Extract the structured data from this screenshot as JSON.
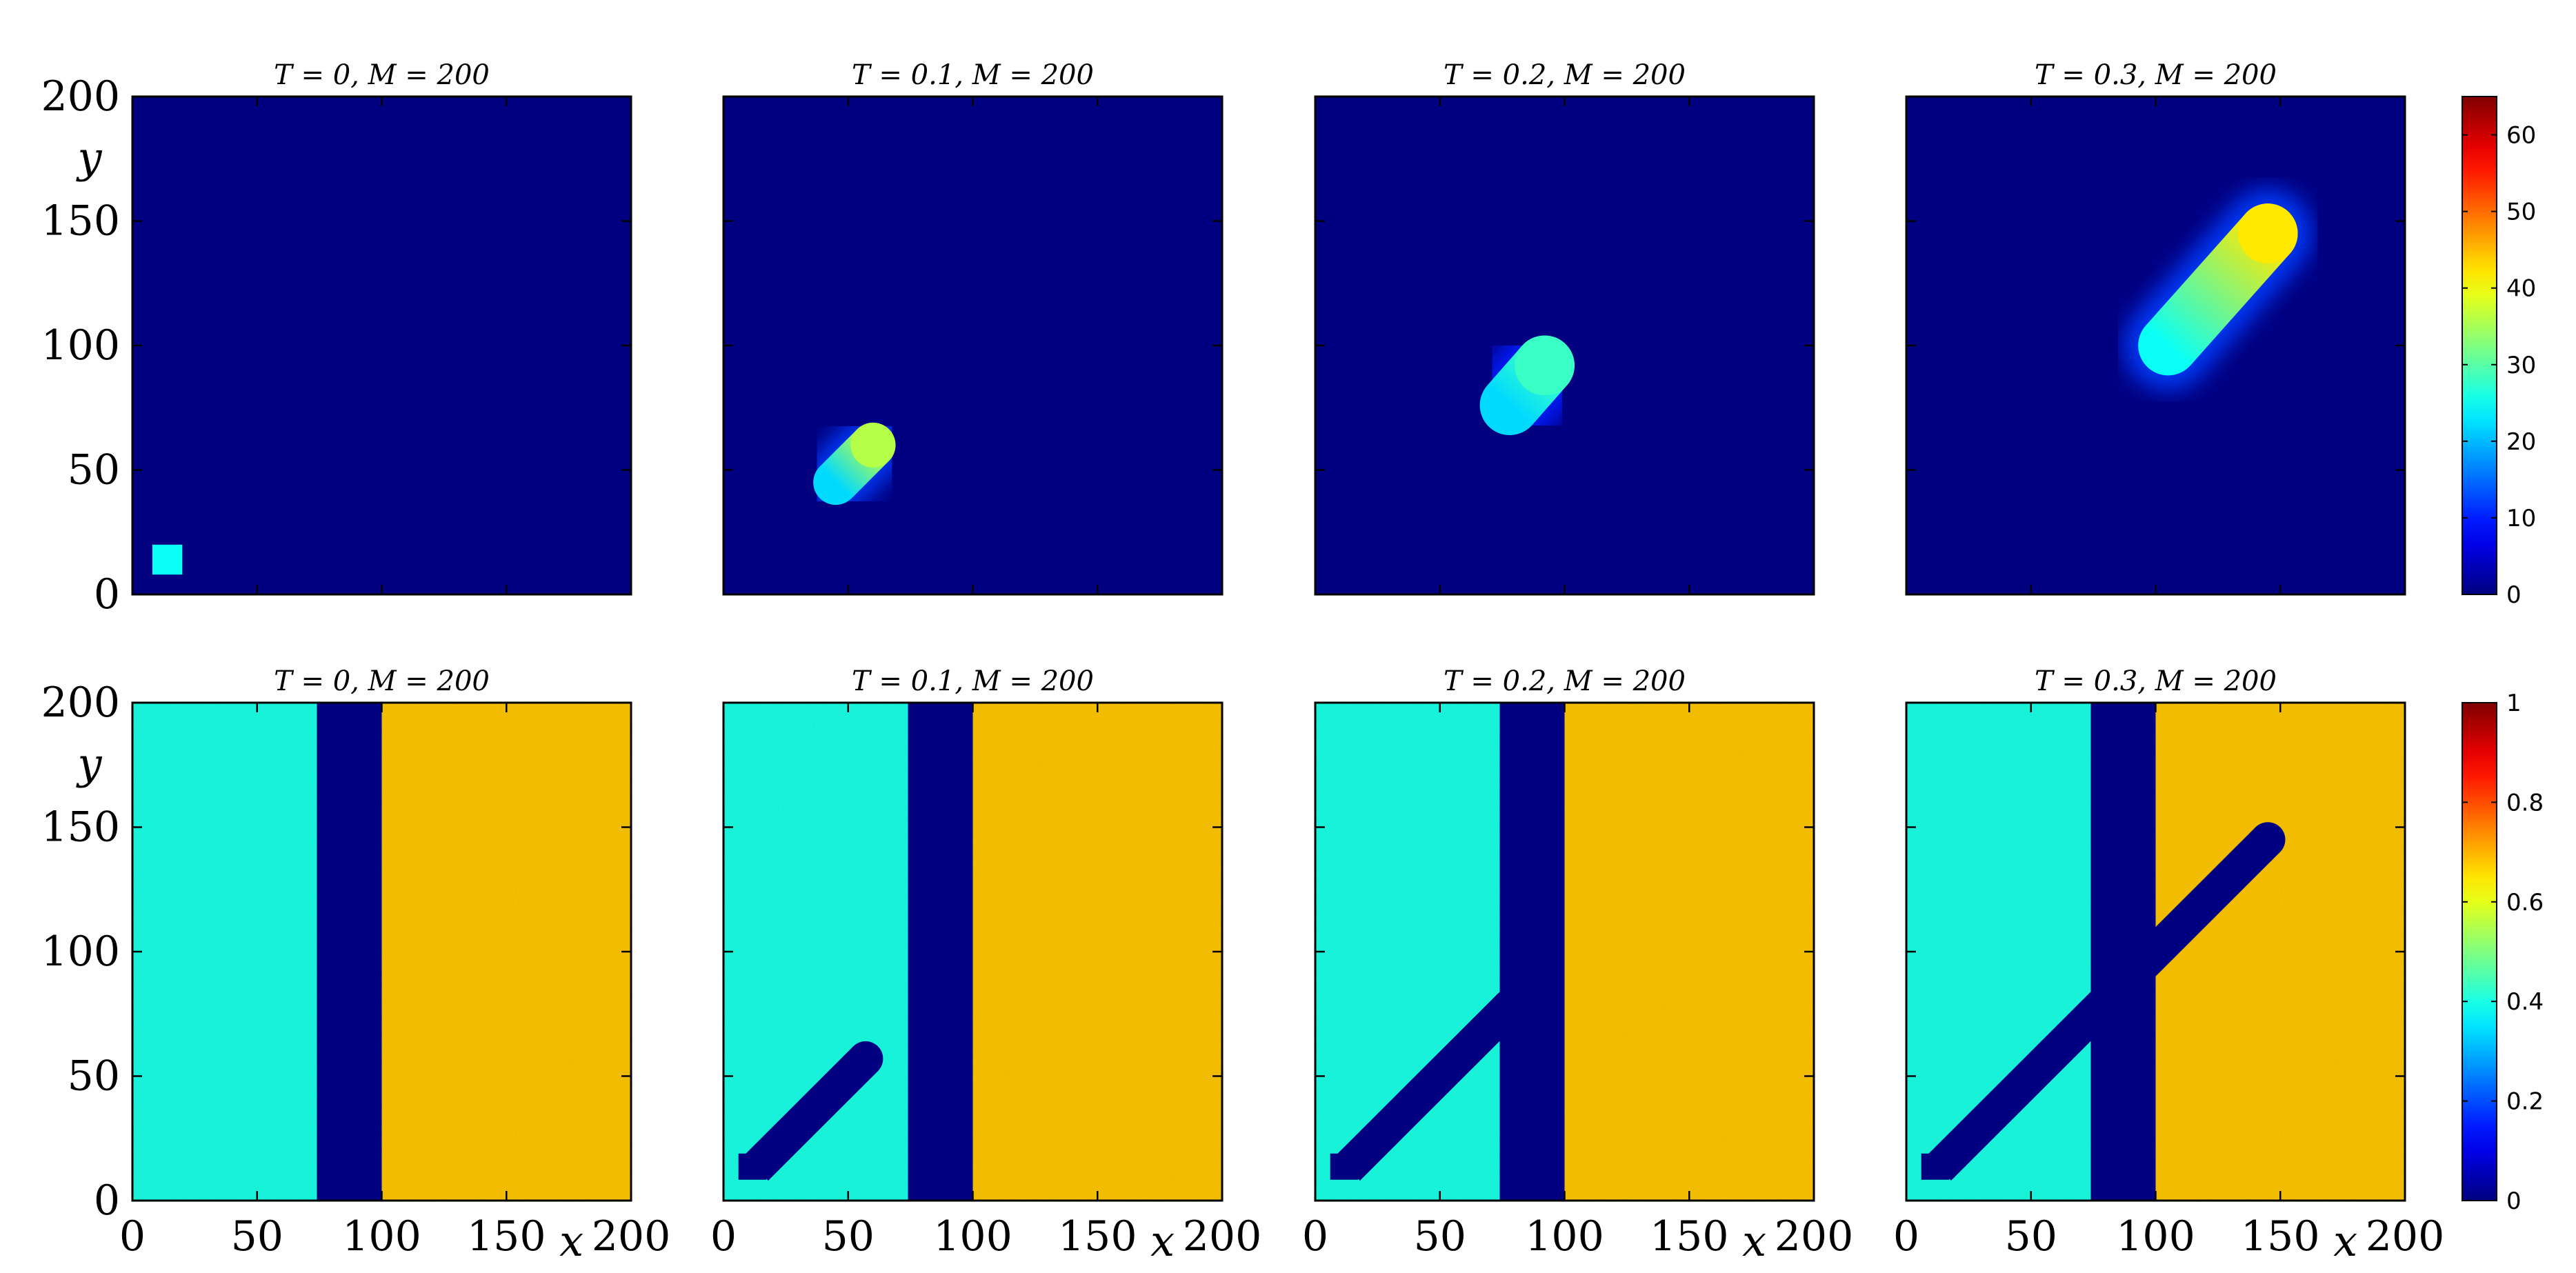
{
  "chart_data": {
    "type": "heatmap",
    "colormap": "jet",
    "grid": false,
    "rows": [
      {
        "name": "",
        "clim": [
          0,
          65
        ],
        "colorbar_ticks": [
          "0",
          "10",
          "20",
          "30",
          "40",
          "50",
          "60"
        ],
        "colorbar_values": [
          0,
          10,
          20,
          30,
          40,
          50,
          60
        ],
        "background_value": 0,
        "panels": [
          {
            "title": "T = 0, M = 200",
            "features": [
              {
                "shape": "square",
                "x_range": [
                  8,
                  20
                ],
                "y_range": [
                  8,
                  20
                ],
                "value": 25
              }
            ]
          },
          {
            "title": "T = 0.1, M = 200",
            "features": [
              {
                "shape": "plume",
                "from": [
                  45,
                  45
                ],
                "to": [
                  60,
                  60
                ],
                "radius": 9,
                "head_value": 36,
                "tail_value": 22,
                "halo_value": 12
              }
            ]
          },
          {
            "title": "T = 0.2, M = 200",
            "features": [
              {
                "shape": "plume",
                "from": [
                  78,
                  76
                ],
                "to": [
                  92,
                  92
                ],
                "radius": 12,
                "head_value": 28,
                "tail_value": 22,
                "halo_value": 10
              }
            ]
          },
          {
            "title": "T = 0.3, M = 200",
            "features": [
              {
                "shape": "plume",
                "from": [
                  105,
                  100
                ],
                "to": [
                  145,
                  145
                ],
                "radius": 12,
                "head_value": 42,
                "tail_value": 25,
                "halo_value": 12
              }
            ]
          }
        ]
      },
      {
        "name": "",
        "clim": [
          0,
          1
        ],
        "colorbar_ticks": [
          "0",
          "0.2",
          "0.4",
          "0.6",
          "0.8",
          "1"
        ],
        "colorbar_values": [
          0,
          0.2,
          0.4,
          0.6,
          0.8,
          1
        ],
        "left_value": 0.4,
        "right_value": 0.68,
        "band_value": 0,
        "band_x": [
          74,
          100
        ],
        "panels": [
          {
            "title": "T = 0, M = 200",
            "channel": null
          },
          {
            "title": "T = 0.1, M = 200",
            "channel": {
              "from": [
                13,
                13
              ],
              "to": [
                57,
                57
              ],
              "half_width": 7
            }
          },
          {
            "title": "T = 0.2, M = 200",
            "channel": {
              "from": [
                13,
                13
              ],
              "to": [
                78,
                78
              ],
              "half_width": 7
            }
          },
          {
            "title": "T = 0.3, M = 200",
            "channel": {
              "from": [
                13,
                13
              ],
              "to": [
                145,
                145
              ],
              "half_width": 7
            }
          }
        ]
      }
    ],
    "xlim": [
      0,
      200
    ],
    "ylim": [
      0,
      200
    ],
    "x_ticks": [
      0,
      50,
      100,
      150,
      200
    ],
    "y_ticks": [
      0,
      50,
      100,
      150,
      200
    ],
    "xlabel": "x",
    "ylabel": "y"
  }
}
